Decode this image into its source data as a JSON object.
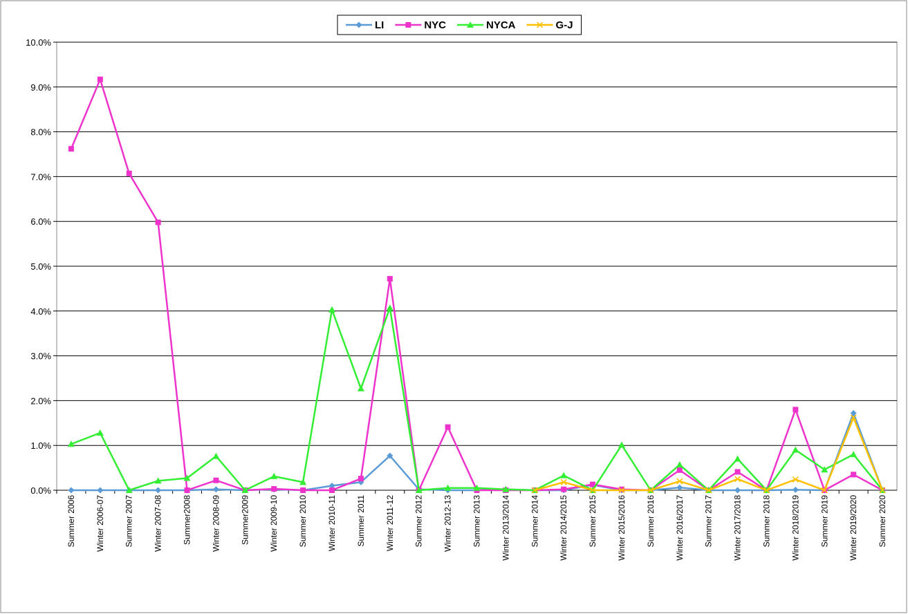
{
  "chart_data": {
    "type": "line",
    "categories": [
      "Summer 2006",
      "Winter 2006-07",
      "Summer 2007",
      "Winter 2007-08",
      "Summer2008",
      "Winter 2008-09",
      "Summer2009",
      "Winter 2009-10",
      "Summer 2010",
      "Winter 2010-11",
      "Summer 2011",
      "Winter 2011-12",
      "Summer 2012",
      "Winter 2012-13",
      "Summer 2013",
      "Winter 2013/2014",
      "Summer 2014",
      "Winter 2014/2015",
      "Summer 2015",
      "Winter 2015/2016",
      "Summer 2016",
      "Winter 2016/2017",
      "Summer 2017",
      "Winter 2017/2018",
      "Summer 2018",
      "Winter 2018/2019",
      "Summer 2019",
      "Winter 2019/2020",
      "Summer 2020"
    ],
    "series": [
      {
        "name": "LI",
        "color": "#5b9bd5",
        "marker": "diamond",
        "values": [
          0,
          0,
          0,
          0,
          0,
          0.02,
          0,
          0.02,
          0,
          0.1,
          0.18,
          0.77,
          0.02,
          0,
          0,
          0.02,
          0,
          0,
          0.12,
          0,
          0,
          0.06,
          0,
          0,
          0,
          0.01,
          0,
          1.72,
          0
        ]
      },
      {
        "name": "NYC",
        "color": "#ee33cc",
        "marker": "square",
        "values": [
          7.62,
          9.17,
          7.07,
          5.98,
          0,
          0.22,
          0,
          0.03,
          0,
          0,
          0.26,
          4.72,
          0,
          1.41,
          0,
          0,
          0,
          0.02,
          0.13,
          0.02,
          0,
          0.45,
          0,
          0.41,
          0,
          1.8,
          0,
          0.35,
          0
        ]
      },
      {
        "name": "NYCA",
        "color": "#33ee33",
        "marker": "triangle",
        "values": [
          1.03,
          1.28,
          0,
          0.21,
          0.27,
          0.76,
          0,
          0.31,
          0.18,
          4.03,
          2.27,
          4.07,
          0,
          0.05,
          0.05,
          0.02,
          0,
          0.33,
          0,
          1.01,
          0,
          0.57,
          0,
          0.7,
          0,
          0.9,
          0.46,
          0.8,
          0
        ]
      },
      {
        "name": "G-J",
        "color": "#ffc000",
        "marker": "x",
        "values": [
          null,
          null,
          null,
          null,
          null,
          null,
          null,
          null,
          null,
          null,
          null,
          null,
          null,
          null,
          null,
          null,
          0,
          0.18,
          0,
          0,
          0,
          0.2,
          0,
          0.25,
          0,
          0.24,
          0,
          1.62,
          0
        ]
      }
    ],
    "ylim": [
      0,
      10
    ],
    "yticks": [
      {
        "value": 0,
        "label": "0.0%"
      },
      {
        "value": 1,
        "label": "1.0%"
      },
      {
        "value": 2,
        "label": "2.0%"
      },
      {
        "value": 3,
        "label": "3.0%"
      },
      {
        "value": 4,
        "label": "4.0%"
      },
      {
        "value": 5,
        "label": "5.0%"
      },
      {
        "value": 6,
        "label": "6.0%"
      },
      {
        "value": 7,
        "label": "7.0%"
      },
      {
        "value": 8,
        "label": "8.0%"
      },
      {
        "value": 9,
        "label": "9.0%"
      },
      {
        "value": 10,
        "label": "10.0%"
      }
    ],
    "grid": true,
    "legend": "top"
  }
}
